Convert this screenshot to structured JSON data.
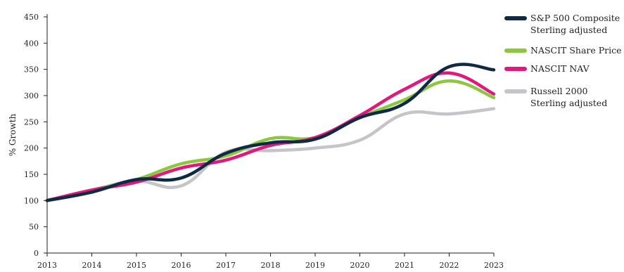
{
  "chart_data": {
    "type": "line",
    "title": "",
    "xlabel": "",
    "ylabel": "% Growth",
    "x": [
      "2013",
      "2014",
      "2015",
      "2016",
      "2017",
      "2018",
      "2019",
      "2020",
      "2021",
      "2022",
      "2023"
    ],
    "ylim": [
      0,
      450
    ],
    "yticks": [
      0,
      50,
      100,
      150,
      200,
      250,
      300,
      350,
      400,
      450
    ],
    "grid": false,
    "legend_position": "right",
    "series": [
      {
        "name": "S&P 500 Composite Sterling adjusted",
        "legend_lines": [
          "S&P 500 Composite",
          "Sterling adjusted"
        ],
        "color": "#0f2a44",
        "values": [
          100,
          116,
          140,
          143,
          190,
          210,
          217,
          258,
          285,
          355,
          349
        ]
      },
      {
        "name": "NASCIT Share Price",
        "legend_lines": [
          "NASCIT Share Price"
        ],
        "color": "#8dc63f",
        "values": [
          100,
          120,
          140,
          170,
          185,
          218,
          220,
          258,
          292,
          328,
          296
        ]
      },
      {
        "name": "NASCIT NAV",
        "legend_lines": [
          "NASCIT NAV"
        ],
        "color": "#e0197d",
        "values": [
          100,
          120,
          135,
          162,
          177,
          205,
          220,
          262,
          312,
          343,
          303
        ]
      },
      {
        "name": "Russell 2000 Sterling adjusted",
        "legend_lines": [
          "Russell 2000",
          "Sterling adjusted"
        ],
        "color": "#c5c5c9",
        "values": [
          100,
          120,
          137,
          128,
          192,
          195,
          200,
          215,
          265,
          265,
          275
        ]
      }
    ],
    "draw_order": [
      3,
      1,
      2,
      0
    ]
  }
}
